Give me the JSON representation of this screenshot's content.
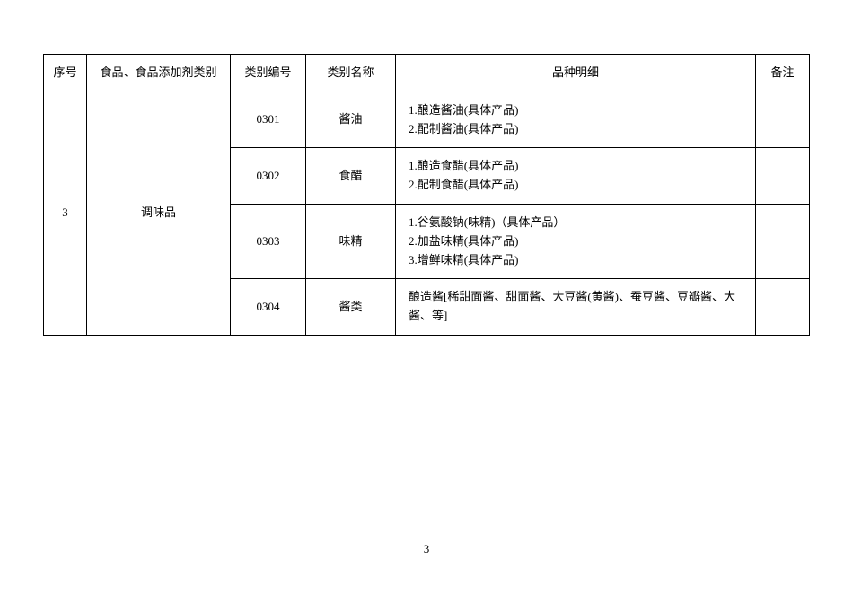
{
  "table": {
    "headers": {
      "seq": "序号",
      "category": "食品、食品添加剂类别",
      "code": "类别编号",
      "name": "类别名称",
      "detail": "品种明细",
      "remark": "备注"
    },
    "main_seq": "3",
    "main_category": "调味品",
    "rows": [
      {
        "code": "0301",
        "name": "酱油",
        "detail": "1.酿造酱油(具体产品)\n2.配制酱油(具体产品)",
        "remark": ""
      },
      {
        "code": "0302",
        "name": "食醋",
        "detail": "1.酿造食醋(具体产品)\n2.配制食醋(具体产品)",
        "remark": ""
      },
      {
        "code": "0303",
        "name": "味精",
        "detail": "1.谷氨酸钠(味精)（具体产品）\n2.加盐味精(具体产品)\n3.增鲜味精(具体产品)",
        "remark": ""
      },
      {
        "code": "0304",
        "name": "酱类",
        "detail": "酿造酱[稀甜面酱、甜面酱、大豆酱(黄酱)、蚕豆酱、豆瓣酱、大酱、等]",
        "remark": ""
      }
    ]
  },
  "page_number": "3"
}
